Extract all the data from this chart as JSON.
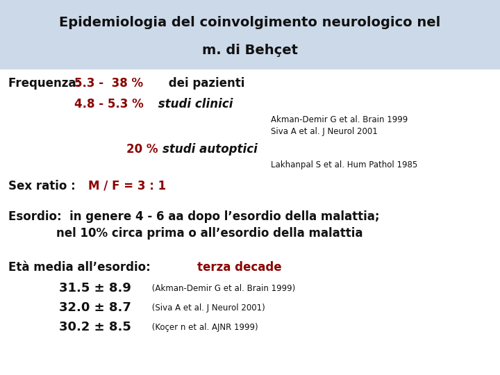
{
  "title_line1": "Epidemiologia del coinvolgimento neurologico nel",
  "title_line2": "m. di Behçet",
  "title_bg_color": "#ccd9e8",
  "title_text_color": "#111111",
  "body_bg_color": "#ffffff",
  "dark_red": "#8b0000",
  "black": "#111111",
  "freq_label": "Frequenza: ",
  "freq_line1_red": "5.3 -  38 %",
  "freq_line1_black": " dei pazienti",
  "freq_line2_red": "4.8 - 5.3 %",
  "freq_line2_italic": " studi clinici",
  "ref1": "Akman-Demir G et al. Brain 1999",
  "ref2": "Siva A et al. J Neurol 2001",
  "freq_auto_red": "20 % ",
  "freq_auto_italic": "studi autoptici",
  "ref3": "Lakhanpal S et al. Hum Pathol 1985",
  "sex_label": "Sex ratio :  ",
  "sex_red": "M / F = 3 : 1",
  "esordio_line1": "Esordio:  in genere 4 - 6 aa dopo l’esordio della malattia;",
  "esordio_line2": "            nel 10% circa prima o all’esordio della malattia",
  "eta_label_black": "Età media all’esordio: ",
  "eta_label_red": "terza decade",
  "eta_line1_bold": "31.5 ± 8.9",
  "eta_line1_ref": " (Akman-Demir G et al. Brain 1999)",
  "eta_line2_bold": "32.0 ± 8.7",
  "eta_line2_ref": " (Siva A et al. J Neurol 2001)",
  "eta_line3_bold": "30.2 ± 8.5",
  "eta_line3_ref": " (Koçer n et al. AJNR 1999)",
  "title_fontsize": 14,
  "body_fontsize": 12,
  "ref_fontsize": 8.5,
  "eta_bold_fontsize": 13
}
